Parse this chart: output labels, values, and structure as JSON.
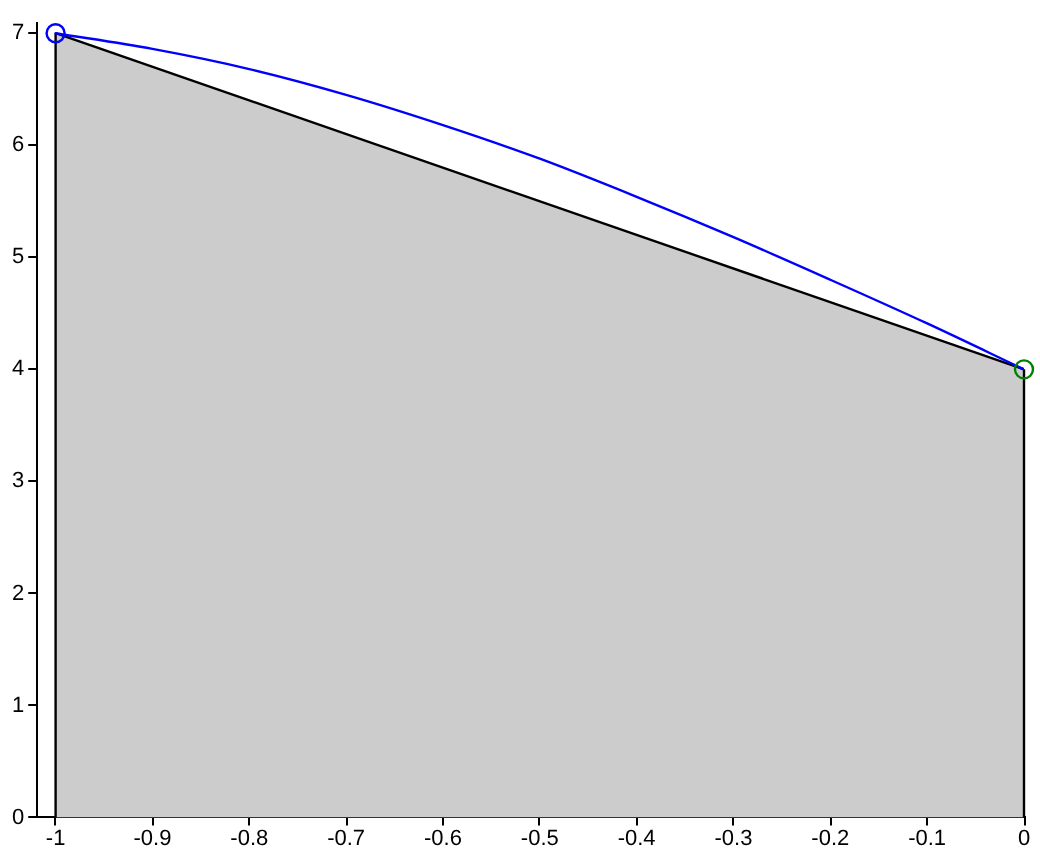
{
  "chart_data": {
    "type": "line",
    "xlim": [
      -1.02,
      0
    ],
    "ylim": [
      0,
      7.1
    ],
    "xticks": [
      -1,
      -0.9,
      -0.8,
      -0.7,
      -0.6,
      -0.5,
      -0.4,
      -0.3,
      -0.2,
      -0.1,
      0
    ],
    "yticks": [
      0,
      1,
      2,
      3,
      4,
      5,
      6,
      7
    ],
    "series": [
      {
        "type": "area",
        "color": "#cccccc",
        "x": [
          -1,
          0
        ],
        "values": [
          7,
          4
        ]
      },
      {
        "color": "#0000ff",
        "x": [
          -1,
          -0.9,
          -0.8,
          -0.7,
          -0.6,
          -0.5,
          -0.4,
          -0.3,
          -0.2,
          -0.1,
          0
        ],
        "values": [
          7,
          6.86,
          6.68,
          6.45,
          6.18,
          5.88,
          5.54,
          5.18,
          4.8,
          4.41,
          4
        ]
      },
      {
        "type": "scatter",
        "color": "#0000ff",
        "marker": "circle",
        "x": [
          -1
        ],
        "values": [
          7
        ]
      },
      {
        "type": "scatter",
        "color": "#008000",
        "marker": "circle",
        "x": [
          0
        ],
        "values": [
          4
        ]
      }
    ]
  }
}
